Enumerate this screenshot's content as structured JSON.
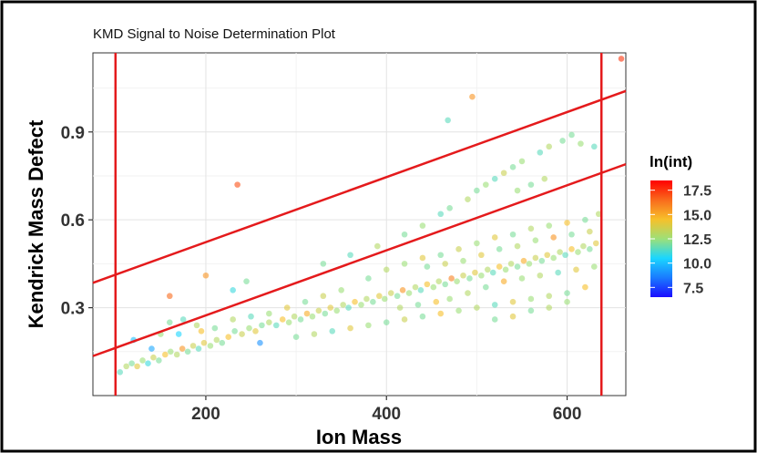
{
  "chart_data": {
    "type": "scatter",
    "title": "KMD Signal to Noise Determination Plot",
    "xlabel": "Ion Mass",
    "ylabel": "Kendrick Mass Defect",
    "xlim": [
      75,
      665
    ],
    "ylim": [
      0.0,
      1.17
    ],
    "xticks": [
      200,
      400,
      600
    ],
    "xtick_labels": [
      "200",
      "400",
      "600"
    ],
    "yticks": [
      0.3,
      0.6,
      0.9
    ],
    "ytick_labels": [
      "0.3",
      "0.6",
      "0.9"
    ],
    "grid": true,
    "legend": {
      "title": "ln(int)",
      "position": "right",
      "type": "colorbar",
      "range": [
        6.5,
        18.5
      ],
      "ticks": [
        7.5,
        10.0,
        12.5,
        15.0,
        17.5
      ],
      "tick_labels": [
        "7.5",
        "10.0",
        "12.5",
        "15.0",
        "17.5"
      ],
      "colors": [
        "#1a0dff",
        "#1a7bff",
        "#1ad6ff",
        "#9de078",
        "#f7c02a",
        "#f96a1c",
        "#ff0000"
      ]
    },
    "reference_lines": [
      {
        "kind": "vertical",
        "x": 100,
        "color": "#e41a1c"
      },
      {
        "kind": "vertical",
        "x": 638,
        "color": "#e41a1c"
      },
      {
        "kind": "line",
        "x": [
          75,
          665
        ],
        "y": [
          0.385,
          1.04
        ],
        "color": "#e41a1c"
      },
      {
        "kind": "line",
        "x": [
          75,
          665
        ],
        "y": [
          0.135,
          0.79
        ],
        "color": "#e41a1c"
      }
    ],
    "series": [
      {
        "points": [
          [
            105,
            0.08,
            11.5
          ],
          [
            112,
            0.1,
            13.0
          ],
          [
            118,
            0.11,
            12.0
          ],
          [
            124,
            0.1,
            14.0
          ],
          [
            130,
            0.12,
            12.5
          ],
          [
            136,
            0.11,
            11.0
          ],
          [
            142,
            0.13,
            13.5
          ],
          [
            148,
            0.12,
            12.0
          ],
          [
            155,
            0.14,
            14.5
          ],
          [
            161,
            0.15,
            12.5
          ],
          [
            168,
            0.14,
            13.0
          ],
          [
            174,
            0.16,
            15.5
          ],
          [
            180,
            0.15,
            12.0
          ],
          [
            186,
            0.17,
            13.5
          ],
          [
            192,
            0.16,
            11.5
          ],
          [
            198,
            0.18,
            14.0
          ],
          [
            205,
            0.17,
            12.5
          ],
          [
            212,
            0.19,
            13.0
          ],
          [
            218,
            0.18,
            12.0
          ],
          [
            225,
            0.2,
            14.5
          ],
          [
            160,
            0.25,
            12.0
          ],
          [
            175,
            0.26,
            11.5
          ],
          [
            190,
            0.24,
            13.0
          ],
          [
            150,
            0.21,
            12.5
          ],
          [
            232,
            0.22,
            12.0
          ],
          [
            240,
            0.21,
            13.5
          ],
          [
            248,
            0.23,
            12.5
          ],
          [
            255,
            0.22,
            14.0
          ],
          [
            262,
            0.24,
            12.0
          ],
          [
            270,
            0.25,
            13.0
          ],
          [
            278,
            0.24,
            11.5
          ],
          [
            285,
            0.26,
            14.5
          ],
          [
            292,
            0.25,
            12.5
          ],
          [
            298,
            0.27,
            13.0
          ],
          [
            305,
            0.26,
            12.0
          ],
          [
            312,
            0.28,
            15.0
          ],
          [
            318,
            0.27,
            12.5
          ],
          [
            325,
            0.29,
            13.5
          ],
          [
            332,
            0.28,
            12.0
          ],
          [
            338,
            0.3,
            14.0
          ],
          [
            345,
            0.29,
            12.5
          ],
          [
            352,
            0.31,
            13.0
          ],
          [
            358,
            0.3,
            11.5
          ],
          [
            365,
            0.32,
            14.5
          ],
          [
            372,
            0.31,
            12.5
          ],
          [
            378,
            0.33,
            13.0
          ],
          [
            385,
            0.32,
            12.0
          ],
          [
            392,
            0.34,
            14.0
          ],
          [
            398,
            0.33,
            12.5
          ],
          [
            405,
            0.35,
            13.5
          ],
          [
            412,
            0.34,
            12.0
          ],
          [
            418,
            0.36,
            15.5
          ],
          [
            425,
            0.35,
            12.5
          ],
          [
            432,
            0.37,
            13.0
          ],
          [
            438,
            0.36,
            11.5
          ],
          [
            445,
            0.38,
            14.5
          ],
          [
            452,
            0.37,
            12.5
          ],
          [
            458,
            0.39,
            13.0
          ],
          [
            465,
            0.38,
            12.0
          ],
          [
            472,
            0.4,
            16.0
          ],
          [
            478,
            0.39,
            12.5
          ],
          [
            485,
            0.41,
            13.5
          ],
          [
            492,
            0.4,
            12.0
          ],
          [
            498,
            0.42,
            14.0
          ],
          [
            505,
            0.41,
            12.5
          ],
          [
            512,
            0.43,
            13.0
          ],
          [
            518,
            0.42,
            11.5
          ],
          [
            525,
            0.44,
            14.5
          ],
          [
            532,
            0.43,
            12.5
          ],
          [
            538,
            0.45,
            13.0
          ],
          [
            545,
            0.44,
            12.0
          ],
          [
            552,
            0.46,
            15.0
          ],
          [
            558,
            0.45,
            12.5
          ],
          [
            565,
            0.47,
            13.5
          ],
          [
            572,
            0.46,
            12.0
          ],
          [
            578,
            0.48,
            14.0
          ],
          [
            585,
            0.47,
            12.5
          ],
          [
            592,
            0.49,
            13.0
          ],
          [
            598,
            0.48,
            11.5
          ],
          [
            605,
            0.5,
            14.5
          ],
          [
            612,
            0.49,
            12.5
          ],
          [
            618,
            0.51,
            13.0
          ],
          [
            625,
            0.5,
            12.0
          ],
          [
            632,
            0.52,
            14.0
          ],
          [
            300,
            0.2,
            12.0
          ],
          [
            320,
            0.21,
            13.0
          ],
          [
            340,
            0.22,
            11.5
          ],
          [
            360,
            0.23,
            14.0
          ],
          [
            380,
            0.24,
            12.5
          ],
          [
            400,
            0.25,
            12.0
          ],
          [
            420,
            0.26,
            13.5
          ],
          [
            440,
            0.27,
            12.0
          ],
          [
            460,
            0.28,
            14.5
          ],
          [
            480,
            0.29,
            12.5
          ],
          [
            500,
            0.3,
            13.0
          ],
          [
            520,
            0.31,
            11.5
          ],
          [
            540,
            0.32,
            14.0
          ],
          [
            560,
            0.33,
            12.5
          ],
          [
            580,
            0.34,
            13.0
          ],
          [
            600,
            0.35,
            12.0
          ],
          [
            620,
            0.37,
            14.5
          ],
          [
            380,
            0.4,
            12.0
          ],
          [
            400,
            0.43,
            13.0
          ],
          [
            420,
            0.45,
            12.5
          ],
          [
            440,
            0.47,
            14.0
          ],
          [
            460,
            0.48,
            12.0
          ],
          [
            480,
            0.5,
            13.5
          ],
          [
            500,
            0.52,
            12.5
          ],
          [
            520,
            0.54,
            14.0
          ],
          [
            540,
            0.55,
            12.0
          ],
          [
            560,
            0.57,
            13.0
          ],
          [
            580,
            0.58,
            12.5
          ],
          [
            600,
            0.59,
            14.5
          ],
          [
            620,
            0.6,
            12.0
          ],
          [
            635,
            0.62,
            13.0
          ],
          [
            350,
            0.36,
            12.5
          ],
          [
            330,
            0.34,
            13.5
          ],
          [
            310,
            0.32,
            12.0
          ],
          [
            290,
            0.3,
            14.0
          ],
          [
            270,
            0.28,
            12.5
          ],
          [
            250,
            0.27,
            11.5
          ],
          [
            230,
            0.26,
            13.0
          ],
          [
            210,
            0.23,
            12.0
          ],
          [
            195,
            0.22,
            14.5
          ],
          [
            470,
            0.33,
            12.5
          ],
          [
            490,
            0.35,
            13.0
          ],
          [
            510,
            0.37,
            12.0
          ],
          [
            530,
            0.39,
            15.0
          ],
          [
            550,
            0.4,
            12.5
          ],
          [
            570,
            0.41,
            13.0
          ],
          [
            590,
            0.42,
            11.5
          ],
          [
            610,
            0.43,
            14.0
          ],
          [
            630,
            0.44,
            12.5
          ],
          [
            415,
            0.3,
            13.0
          ],
          [
            435,
            0.31,
            12.0
          ],
          [
            455,
            0.32,
            14.5
          ],
          [
            445,
            0.44,
            12.0
          ],
          [
            465,
            0.45,
            13.5
          ],
          [
            485,
            0.46,
            12.5
          ],
          [
            505,
            0.48,
            14.0
          ],
          [
            525,
            0.5,
            12.0
          ],
          [
            545,
            0.51,
            13.0
          ],
          [
            565,
            0.53,
            12.5
          ],
          [
            585,
            0.54,
            15.5
          ],
          [
            605,
            0.55,
            12.0
          ],
          [
            625,
            0.56,
            13.5
          ],
          [
            560,
            0.29,
            12.0
          ],
          [
            580,
            0.3,
            13.0
          ],
          [
            600,
            0.32,
            12.5
          ],
          [
            540,
            0.27,
            14.0
          ],
          [
            520,
            0.26,
            12.0
          ],
          [
            330,
            0.45,
            12.0
          ],
          [
            360,
            0.48,
            11.5
          ],
          [
            390,
            0.51,
            13.0
          ],
          [
            420,
            0.55,
            12.0
          ],
          [
            440,
            0.58,
            12.5
          ],
          [
            460,
            0.62,
            11.5
          ],
          [
            470,
            0.64,
            12.0
          ],
          [
            490,
            0.67,
            13.0
          ],
          [
            500,
            0.7,
            12.0
          ],
          [
            510,
            0.72,
            12.5
          ],
          [
            520,
            0.74,
            11.5
          ],
          [
            530,
            0.76,
            13.5
          ],
          [
            540,
            0.78,
            12.0
          ],
          [
            550,
            0.8,
            12.5
          ],
          [
            570,
            0.83,
            11.5
          ],
          [
            580,
            0.85,
            13.0
          ],
          [
            595,
            0.87,
            12.0
          ],
          [
            615,
            0.86,
            12.5
          ],
          [
            630,
            0.85,
            11.5
          ],
          [
            605,
            0.89,
            12.0
          ],
          [
            560,
            0.72,
            12.0
          ],
          [
            575,
            0.74,
            13.0
          ],
          [
            545,
            0.7,
            12.5
          ],
          [
            200,
            0.41,
            15.5
          ],
          [
            160,
            0.34,
            16.5
          ],
          [
            235,
            0.72,
            17.0
          ],
          [
            495,
            1.02,
            15.5
          ],
          [
            468,
            0.94,
            11.5
          ],
          [
            660,
            1.15,
            17.5
          ],
          [
            245,
            0.39,
            12.0
          ],
          [
            230,
            0.36,
            11.0
          ],
          [
            120,
            0.19,
            10.0
          ],
          [
            140,
            0.16,
            9.5
          ],
          [
            170,
            0.21,
            10.5
          ],
          [
            260,
            0.18,
            9.0
          ]
        ]
      }
    ]
  }
}
